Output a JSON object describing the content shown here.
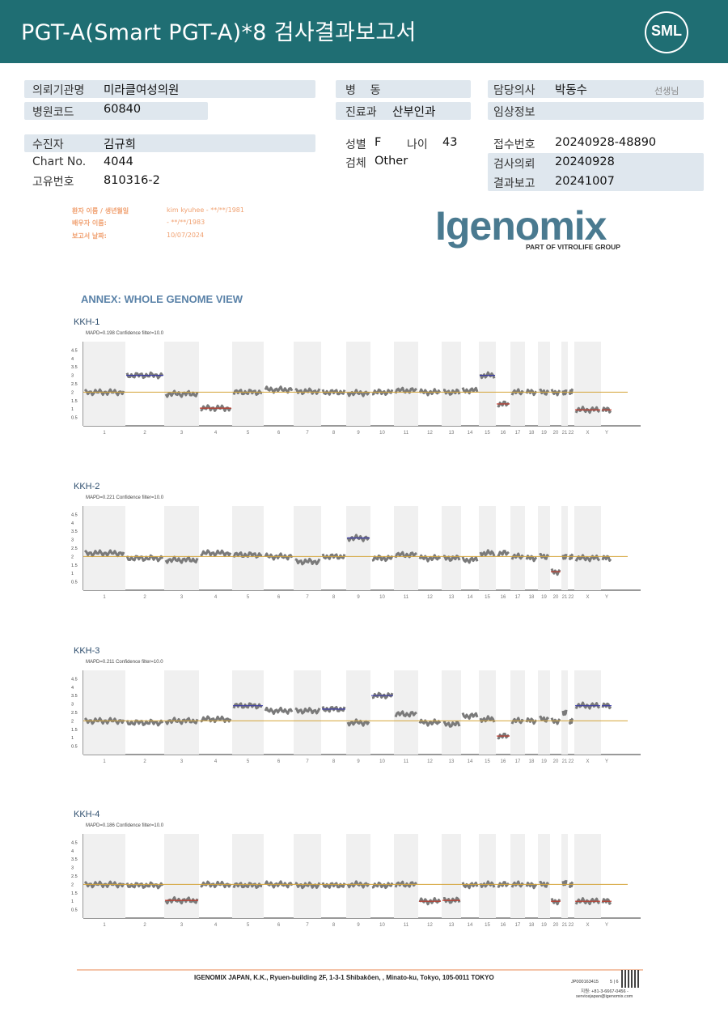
{
  "header": {
    "title": "PGT-A(Smart  PGT-A)*8 검사결과보고서",
    "logo": "SML"
  },
  "info": {
    "institution_label": "의뢰기관명",
    "institution": "미라클여성의원",
    "hospital_code_label": "병원코드",
    "hospital_code": "60840",
    "ward_label": "병    동",
    "ward": "",
    "dept_label": "진료과",
    "dept": "산부인과",
    "doctor_label": "담당의사",
    "doctor": "박동수",
    "doctor_suffix": "선생님",
    "clinical_label": "임상정보",
    "clinical": "",
    "patient_label": "수진자",
    "patient": "김규희",
    "sex_label": "성별",
    "sex": "F",
    "age_label": "나이",
    "age": "43",
    "receipt_label": "접수번호",
    "receipt": "20240928-48890",
    "chart_label": "Chart No.",
    "chart": "4044",
    "specimen_label": "검체",
    "specimen": "Other",
    "request_label": "검사의뢰",
    "request": "20240928",
    "id_label": "고유번호",
    "id": "810316-2",
    "report_label": "결과보고",
    "report": "20241007"
  },
  "sub_info": {
    "patient_name_label": "환자 이름 / 생년월일",
    "patient_name": "kim kyuhee - **/**/1981",
    "spouse_label": "배우자 이름:",
    "spouse": "- **/**/1983",
    "date_label": "보고서 날짜:",
    "date": "10/07/2024"
  },
  "brand": {
    "name": "Igenomix",
    "sub": "PART OF VITROLIFE GROUP"
  },
  "annex_title": "ANNEX: WHOLE GENOME VIEW",
  "chart_data": [
    {
      "type": "scatter",
      "title": "KKH-1",
      "subtitle": "MAPD=0.198 Confidence filter=10.0",
      "yticks": [
        "4.5",
        "4",
        "3.5",
        "3",
        "2.5",
        "2",
        "1.5",
        "1",
        "0.5"
      ],
      "categories": [
        "1",
        "2",
        "3",
        "4",
        "5",
        "6",
        "7",
        "8",
        "9",
        "10",
        "11",
        "12",
        "13",
        "14",
        "15",
        "16",
        "17",
        "18",
        "19",
        "20",
        "21",
        "22",
        "X",
        "Y"
      ],
      "segments": [
        2.0,
        3.0,
        1.9,
        1.05,
        2.0,
        2.15,
        2.05,
        2.0,
        1.95,
        2.0,
        2.1,
        2.0,
        2.0,
        2.1,
        3.0,
        1.3,
        2.0,
        2.0,
        2.0,
        2.0,
        2.0,
        2.05,
        0.95,
        0.95
      ],
      "baseline": 2
    },
    {
      "type": "scatter",
      "title": "KKH-2",
      "subtitle": "MAPD=0.221 Confidence filter=10.0",
      "yticks": [
        "4.5",
        "4",
        "3.5",
        "3",
        "2.5",
        "2",
        "1.5",
        "1",
        "0.5"
      ],
      "categories": [
        "1",
        "2",
        "3",
        "4",
        "5",
        "6",
        "7",
        "8",
        "9",
        "10",
        "11",
        "12",
        "13",
        "14",
        "15",
        "16",
        "17",
        "18",
        "19",
        "20",
        "21",
        "22",
        "X",
        "Y"
      ],
      "segments": [
        2.2,
        1.9,
        1.8,
        2.2,
        2.1,
        2.0,
        1.7,
        2.0,
        3.1,
        1.9,
        2.1,
        1.9,
        1.9,
        1.8,
        2.2,
        2.2,
        2.0,
        1.9,
        2.0,
        1.1,
        2.0,
        2.0,
        1.9,
        1.9
      ],
      "baseline": 2
    },
    {
      "type": "scatter",
      "title": "KKH-3",
      "subtitle": "MAPD=0.211 Confidence filter=10.0",
      "yticks": [
        "4.5",
        "4",
        "3.5",
        "3",
        "2.5",
        "2",
        "1.5",
        "1",
        "0.5"
      ],
      "categories": [
        "1",
        "2",
        "3",
        "4",
        "5",
        "6",
        "7",
        "8",
        "9",
        "10",
        "11",
        "12",
        "13",
        "14",
        "15",
        "16",
        "17",
        "18",
        "19",
        "20",
        "21",
        "22",
        "X",
        "Y"
      ],
      "segments": [
        2.0,
        1.9,
        2.0,
        2.1,
        2.9,
        2.6,
        2.6,
        2.7,
        1.9,
        3.5,
        2.4,
        1.9,
        1.8,
        2.3,
        2.1,
        1.1,
        2.0,
        2.0,
        2.1,
        2.0,
        2.5,
        2.0,
        2.9,
        2.9
      ],
      "baseline": 2
    },
    {
      "type": "scatter",
      "title": "KKH-4",
      "subtitle": "MAPD=0.186 Confidence filter=10.0",
      "yticks": [
        "4.5",
        "4",
        "3.5",
        "3",
        "2.5",
        "2",
        "1.5",
        "1",
        "0.5"
      ],
      "categories": [
        "1",
        "2",
        "3",
        "4",
        "5",
        "6",
        "7",
        "8",
        "9",
        "10",
        "11",
        "12",
        "13",
        "14",
        "15",
        "16",
        "17",
        "18",
        "19",
        "20",
        "21",
        "22",
        "X",
        "Y"
      ],
      "segments": [
        2.0,
        1.95,
        1.05,
        2.0,
        1.95,
        2.0,
        1.95,
        1.95,
        2.0,
        1.95,
        2.0,
        1.0,
        1.05,
        1.95,
        2.0,
        2.0,
        2.0,
        1.95,
        2.0,
        1.0,
        2.1,
        2.0,
        1.0,
        1.0
      ],
      "baseline": 2
    }
  ],
  "footer": {
    "address": "IGENOMIX JAPAN, K.K., Ryuen-building 2F, 1-3-1 Shibakōen, , Minato-ku, Tokyo, 105-0011 TOKYO",
    "doc_id": "JP000163415",
    "page": "5 | 6",
    "phone": "지원: +81-3-6667-0456 -",
    "email": "servicejapan@igenomix.com"
  }
}
